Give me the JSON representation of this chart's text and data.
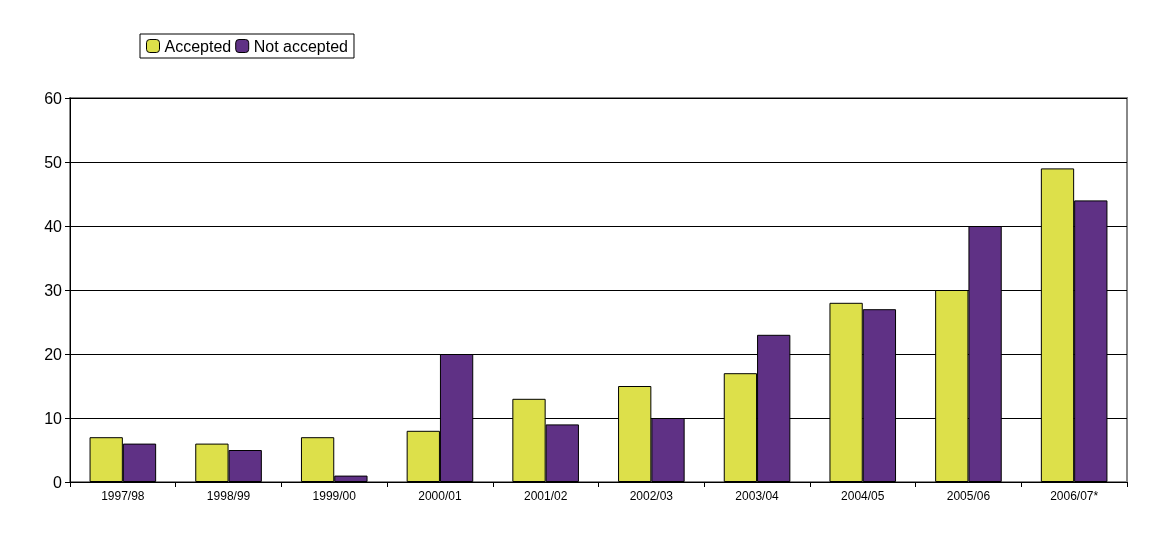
{
  "chart_data": {
    "type": "bar",
    "categories": [
      "1997/98",
      "1998/99",
      "1999/00",
      "2000/01",
      "2001/02",
      "2002/03",
      "2003/04",
      "2004/05",
      "2005/06",
      "2006/07*"
    ],
    "series": [
      {
        "name": "Accepted",
        "color": "#dde04a",
        "values": [
          7,
          6,
          7,
          8,
          13,
          15,
          17,
          28,
          30,
          49
        ]
      },
      {
        "name": "Not accepted",
        "color": "#5f3185",
        "values": [
          6,
          5,
          1,
          20,
          9,
          10,
          23,
          27,
          40,
          44
        ]
      }
    ],
    "ylim": [
      0,
      60
    ],
    "yticks": [
      0,
      10,
      20,
      30,
      40,
      50,
      60
    ],
    "grid": "y",
    "legend": "top left"
  }
}
